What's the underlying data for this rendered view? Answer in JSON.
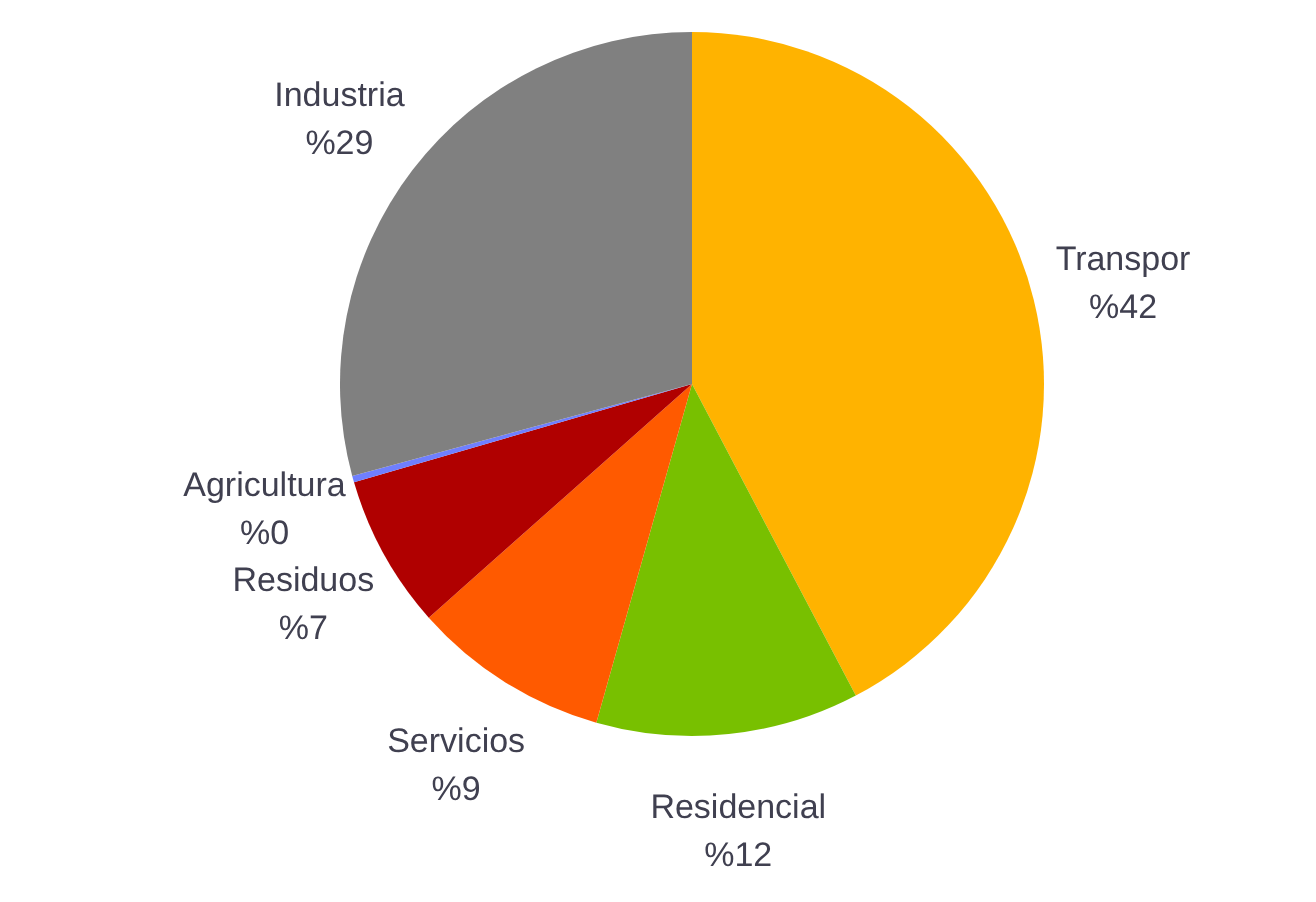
{
  "chart_data": {
    "type": "pie",
    "categories": [
      "Transpor",
      "Residencial",
      "Servicios",
      "Residuos",
      "Agricultura",
      "Industria"
    ],
    "values": [
      42,
      12,
      9,
      7,
      0.3,
      29
    ],
    "colors": [
      "#ffb300",
      "#78c000",
      "#ff5a00",
      "#b00000",
      "#6f7fff",
      "#808080"
    ],
    "value_labels": [
      "%42",
      "%12",
      "%9",
      "%7",
      "%0",
      "%29"
    ]
  }
}
